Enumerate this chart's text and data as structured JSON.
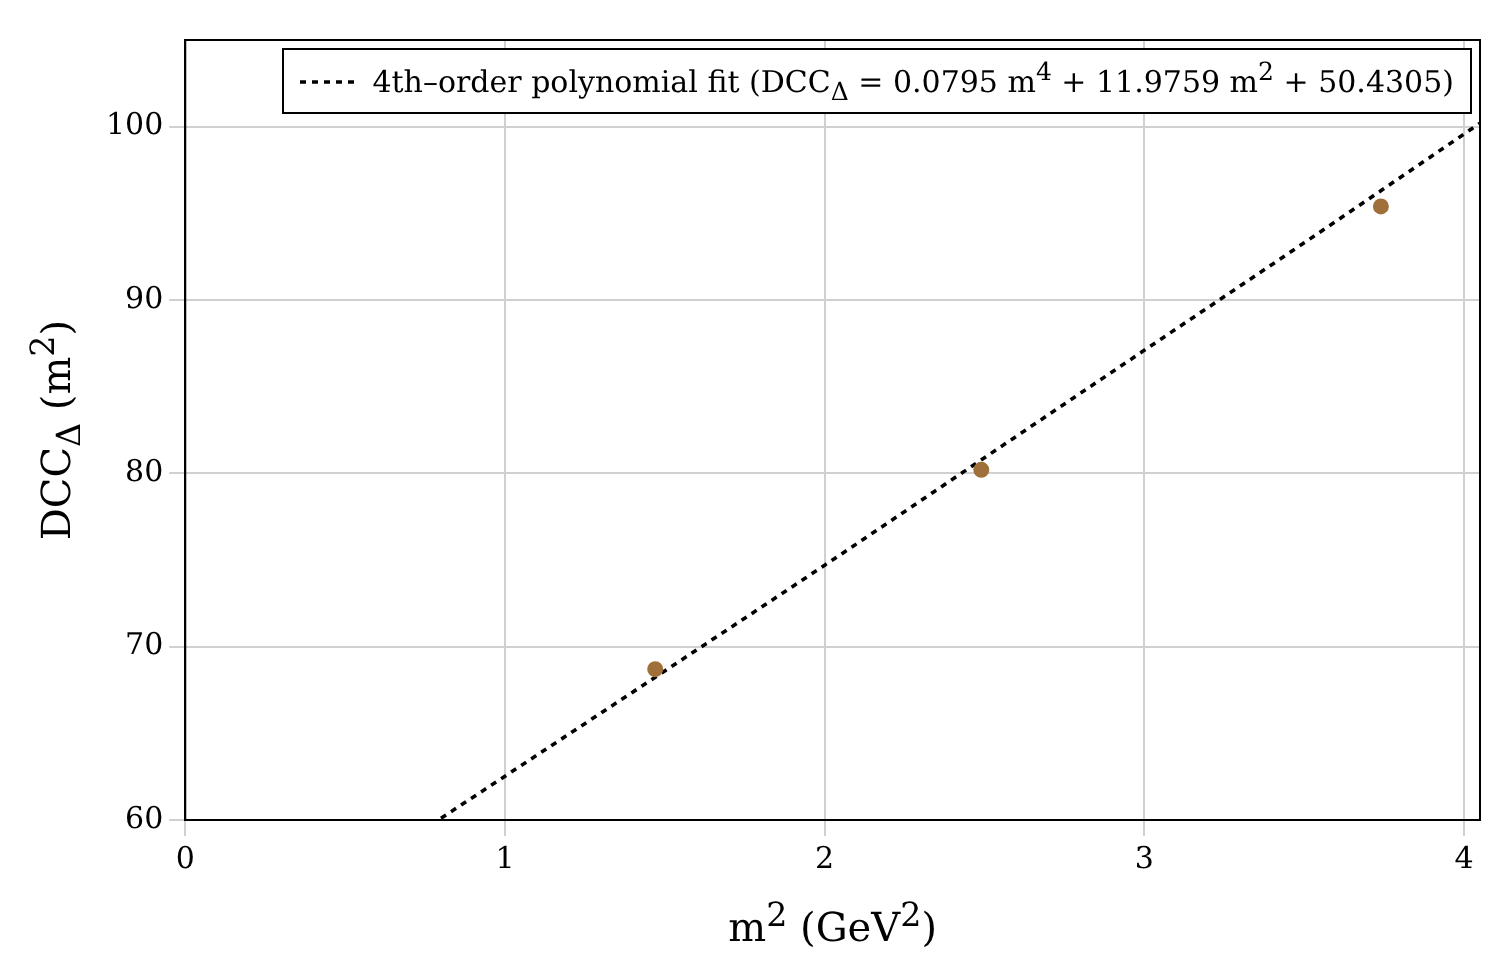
{
  "chart_data": {
    "type": "scatter",
    "xlabel": "m$^{2}$ (GeV$^{2}$)",
    "ylabel": "DCC$_{Δ}$ (m$^{2}$)",
    "xlim": [
      0,
      4.05
    ],
    "ylim": [
      60,
      105
    ],
    "xticks": [
      0,
      1,
      2,
      3,
      4
    ],
    "yticks": [
      60,
      70,
      80,
      90,
      100
    ],
    "grid": true,
    "legend": "top right",
    "series": [
      {
        "color": "#a0703a",
        "marker": "circle",
        "x": [
          1.47,
          2.49,
          3.74
        ],
        "values": [
          68.7,
          80.2,
          95.4
        ]
      },
      {
        "type": "line",
        "name": "4th–order polynomial fit (DCC$_{Δ}$ = 0.0795 m$^{4}$ + 11.9759 m$^{2}$ + 50.4305)",
        "color": "#000000",
        "marker": "none",
        "line_style": "dashed",
        "x": [
          0.8,
          1.5,
          2,
          2.5,
          3,
          3.5,
          4.05
        ],
        "values": [
          60.1,
          68.6,
          74.7,
          80.9,
          87.1,
          93.3,
          100.2
        ]
      }
    ]
  }
}
